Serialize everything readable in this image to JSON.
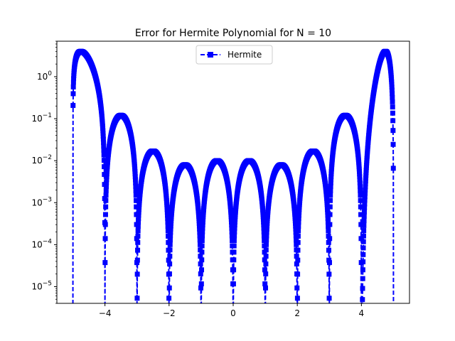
{
  "chart_data": {
    "type": "line",
    "title": "Error for Hermite Polynomial for N = 10",
    "xlabel": "",
    "ylabel": "",
    "xlim": [
      -5.5,
      5.5
    ],
    "ylim": [
      4e-06,
      7
    ],
    "yscale": "log",
    "grid": false,
    "legend_position": "top-center",
    "x_ticks": [
      -4,
      -2,
      0,
      2,
      4
    ],
    "x_tick_labels": [
      "−4",
      "−2",
      "0",
      "2",
      "4"
    ],
    "y_ticks": [
      {
        "value": 1.0,
        "mantissa": "10",
        "exponent": "0"
      },
      {
        "value": 0.1,
        "mantissa": "10",
        "exponent": "−1"
      },
      {
        "value": 0.01,
        "mantissa": "10",
        "exponent": "−2"
      },
      {
        "value": 0.001,
        "mantissa": "10",
        "exponent": "−3"
      },
      {
        "value": 0.0001,
        "mantissa": "10",
        "exponent": "−4"
      },
      {
        "value": 1e-05,
        "mantissa": "10",
        "exponent": "−5"
      }
    ],
    "series": [
      {
        "name": "Hermite",
        "color": "#0000ff",
        "linestyle": "dashed",
        "marker": "square",
        "zeros": [
          -5,
          -4,
          -3,
          -2,
          -1,
          0,
          1,
          2,
          3,
          4,
          5
        ],
        "peaks": [
          {
            "x": -4.75,
            "y": 4.0
          },
          {
            "x": -3.5,
            "y": 0.12
          },
          {
            "x": -2.5,
            "y": 0.017
          },
          {
            "x": -1.5,
            "y": 0.008
          },
          {
            "x": -0.5,
            "y": 0.01
          },
          {
            "x": 0.5,
            "y": 0.01
          },
          {
            "x": 1.5,
            "y": 0.008
          },
          {
            "x": 2.5,
            "y": 0.017
          },
          {
            "x": 3.5,
            "y": 0.12
          },
          {
            "x": 4.75,
            "y": 4.0
          }
        ],
        "x_range": [
          -5,
          5
        ]
      }
    ]
  }
}
